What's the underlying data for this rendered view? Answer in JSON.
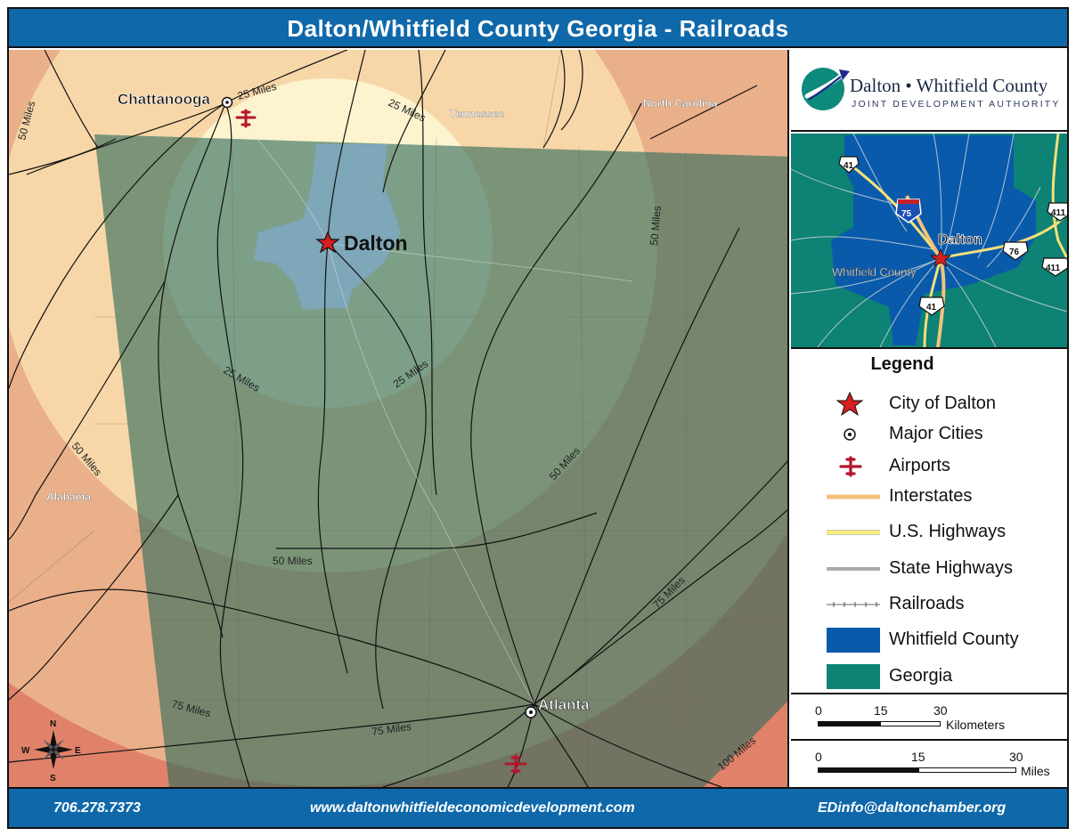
{
  "title": "Dalton/Whitfield County Georgia - Railroads",
  "logo": {
    "name": "Dalton • Whitfield County",
    "subtitle": "JOINT DEVELOPMENT AUTHORITY"
  },
  "map": {
    "cities": {
      "dalton": "Dalton",
      "chattanooga": "Chattanooga",
      "atlanta": "Atlanta"
    },
    "states": {
      "tennessee": "Tennessee",
      "north_carolina": "North Carolina",
      "alabama": "Alabama"
    },
    "rings": {
      "r25": "25 Miles",
      "r50": "50 Miles",
      "r75": "75 Miles",
      "r100": "100 Miles"
    },
    "compass": {
      "n": "N",
      "s": "S",
      "e": "E",
      "w": "W"
    },
    "colors": {
      "ring25": "#fdf3cf",
      "ring50": "#f7d7a8",
      "ring75": "#eab08a",
      "ring100": "#e0826a",
      "georgia_overlay": "#2e6a5a",
      "whitfield": "#7fa9c9",
      "railroad": "#111111",
      "dalton_star": "#d61f1f",
      "airport": "#b3162b"
    }
  },
  "inset": {
    "dalton_label": "Dalton",
    "county_label": "Whitfield County",
    "shields": {
      "i75": "75",
      "us41a": "41",
      "us41b": "41",
      "us76": "76",
      "us411a": "411",
      "us411b": "411"
    },
    "colors": {
      "georgia": "#0e8274",
      "county": "#0a5aab",
      "highway": "#f5e07a",
      "state_road": "#cfd6d6"
    }
  },
  "legend": {
    "title": "Legend",
    "items": [
      {
        "label": "City of Dalton",
        "icon": "red-star-icon"
      },
      {
        "label": "Major Cities",
        "icon": "city-dot-icon"
      },
      {
        "label": "Airports",
        "icon": "airplane-icon"
      },
      {
        "label": "Interstates",
        "icon": "interstate-line-icon"
      },
      {
        "label": "U.S. Highways",
        "icon": "us-highway-line-icon"
      },
      {
        "label": "State Highways",
        "icon": "state-highway-line-icon"
      },
      {
        "label": "Railroads",
        "icon": "railroad-line-icon"
      },
      {
        "label": "Whitfield County",
        "icon": "whitfield-swatch-icon"
      },
      {
        "label": "Georgia",
        "icon": "georgia-swatch-icon"
      }
    ],
    "colors": {
      "interstate": "#f3c27a",
      "us_highway": "#f5ee7a",
      "whitfield": "#0a5aab",
      "georgia": "#0e8274"
    }
  },
  "scale_km": {
    "t0": "0",
    "t1": "15",
    "t2": "30",
    "unit": "Kilometers"
  },
  "scale_mi": {
    "t0": "0",
    "t1": "15",
    "t2": "30",
    "unit": "Miles"
  },
  "footer": {
    "phone": "706.278.7373",
    "website": "www.daltonwhitfieldeconomicdevelopment.com",
    "email": "EDinfo@daltonchamber.org"
  }
}
